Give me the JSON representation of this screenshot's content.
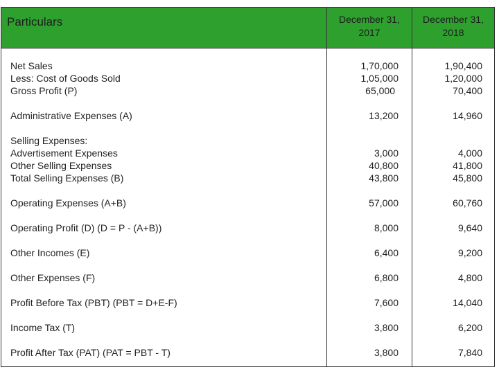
{
  "header": {
    "particulars": "Particulars",
    "col1_line1": "December 31,",
    "col1_line2": "2017",
    "col2_line1": "December 31,",
    "col2_line2": "2018"
  },
  "rows": [
    {
      "label": "Net Sales",
      "v2017": "1,70,000",
      "v2018": "1,90,400"
    },
    {
      "label": "Less: Cost of Goods Sold",
      "v2017": "1,05,000",
      "v2018": "1,20,000"
    },
    {
      "label": "Gross Profit (P)",
      "v2017": "65,000",
      "v2018": "70,400"
    },
    {
      "label": "Administrative Expenses (A)",
      "v2017": "13,200",
      "v2018": "14,960"
    },
    {
      "label": "Selling Expenses:",
      "v2017": "",
      "v2018": ""
    },
    {
      "label": "Advertisement Expenses",
      "v2017": "3,000",
      "v2018": "4,000"
    },
    {
      "label": "Other Selling Expenses",
      "v2017": "40,800",
      "v2018": "41,800"
    },
    {
      "label": "Total Selling Expenses (B)",
      "v2017": "43,800",
      "v2018": "45,800"
    },
    {
      "label": "Operating Expenses (A+B)",
      "v2017": "57,000",
      "v2018": "60,760"
    },
    {
      "label": "Operating Profit (D) (D = P - (A+B))",
      "v2017": "8,000",
      "v2018": "9,640"
    },
    {
      "label": "Other Incomes (E)",
      "v2017": "6,400",
      "v2018": "9,200"
    },
    {
      "label": "Other Expenses (F)",
      "v2017": "6,800",
      "v2018": "4,800"
    },
    {
      "label": "Profit Before Tax (PBT) (PBT = D+E-F)",
      "v2017": "7,600",
      "v2018": "14,040"
    },
    {
      "label": "Income Tax (T)",
      "v2017": "3,800",
      "v2018": "6,200"
    },
    {
      "label": "Profit After Tax (PAT) (PAT = PBT - T)",
      "v2017": "3,800",
      "v2018": "7,840"
    }
  ]
}
